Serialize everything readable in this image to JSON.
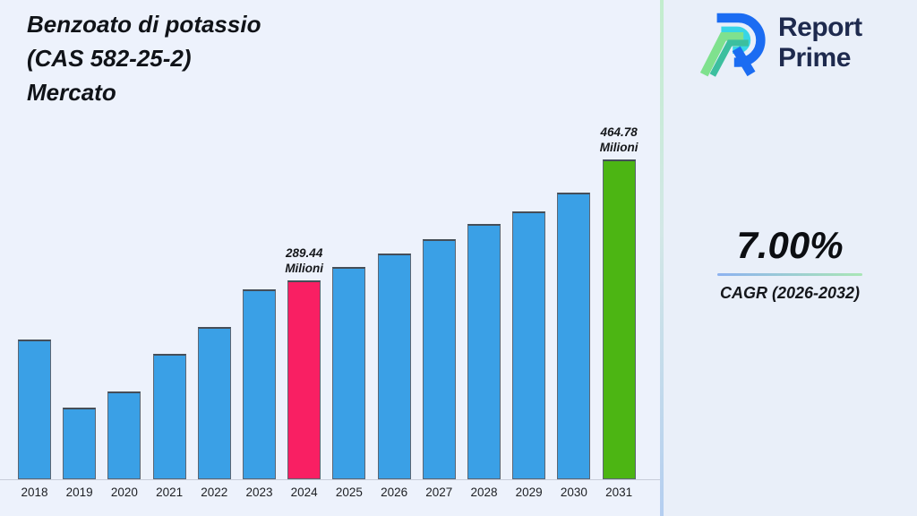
{
  "page": {
    "background_left": "#edf2fc",
    "background_right": "#e9eff9",
    "divider_gradient": [
      "#c2edcd",
      "#b4cef0"
    ]
  },
  "header": {
    "title_lines": [
      "Benzoato di potassio",
      "(CAS 582-25-2)",
      "Mercato"
    ]
  },
  "brand": {
    "name_line1": "Report",
    "name_line2": "Prime",
    "text_color": "#1e2a4e",
    "icon": "report-prime-logo",
    "icon_colors": {
      "blue": "#1b6cf2",
      "cyan": "#38d6e6",
      "light_green": "#7fe18e",
      "teal": "#3cbf9f"
    }
  },
  "cagr": {
    "value": "7.00%",
    "label": "CAGR (2026-2032)"
  },
  "chart_data": {
    "type": "bar",
    "title": "Benzoato di potassio (CAS 582-25-2) Mercato",
    "unit": "Milioni",
    "categories": [
      "2018",
      "2019",
      "2020",
      "2021",
      "2022",
      "2023",
      "2024",
      "2025",
      "2026",
      "2027",
      "2028",
      "2029",
      "2030",
      "2031"
    ],
    "values": [
      203,
      104,
      128,
      182,
      221,
      276,
      289.44,
      308,
      328,
      349,
      371,
      389,
      417,
      464.78
    ],
    "annotations": [
      {
        "category": "2024",
        "lines": [
          "289.44",
          "Milioni"
        ]
      },
      {
        "category": "2031",
        "lines": [
          "464.78",
          "Milioni"
        ]
      }
    ],
    "colors": {
      "default": "#3aa0e6",
      "2024": "#f91f63",
      "2031": "#4cb513",
      "bar_border": "#5c6673"
    },
    "xlabel": "",
    "ylabel": "",
    "ylim": [
      0,
      500
    ],
    "grid": false,
    "legend": false
  }
}
